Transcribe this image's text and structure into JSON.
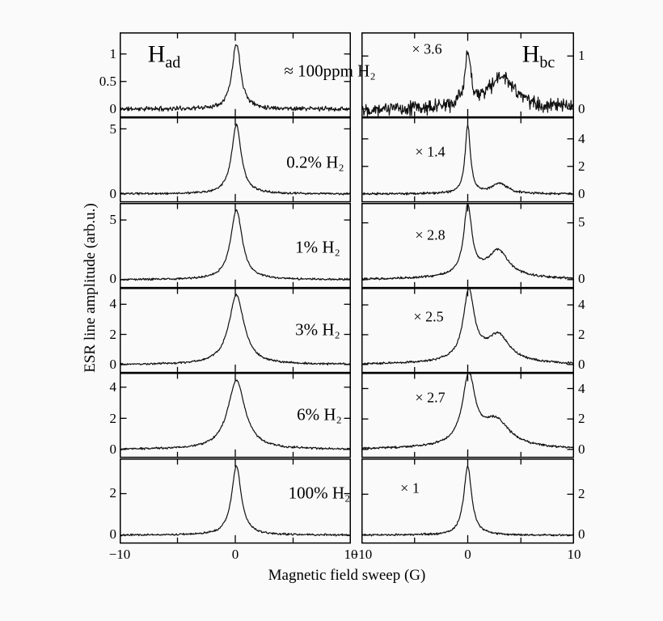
{
  "colors": {
    "axis": "#000000",
    "line": "#111111",
    "background": "#fafafa"
  },
  "chart_data": {
    "type": "line",
    "title": "",
    "xlabel": "Magnetic field sweep (G)",
    "ylabel": "ESR line amplitude (arb.u.)",
    "x_range": [
      -10,
      10
    ],
    "x_tick_labels": [
      "−10",
      "0",
      "10"
    ],
    "grid": false,
    "legend": null,
    "columns": {
      "left": {
        "title_base": "H",
        "title_sub": "ad"
      },
      "right": {
        "title_base": "H",
        "title_sub": "bc"
      }
    },
    "rows": [
      {
        "label": "≈ 100ppm H₂",
        "multiplier": "× 3.6",
        "left": {
          "ymax": 1.3,
          "yticks": [
            [
              0,
              "0"
            ],
            [
              0.5,
              "0.5"
            ],
            [
              1,
              "1"
            ]
          ],
          "peaks": [
            [
              0.1,
              0.45,
              1.2
            ]
          ],
          "noise": 0.05,
          "seed": 11
        },
        "right": {
          "ymax": 1.35,
          "yticks": [
            [
              0,
              "0"
            ],
            [
              1,
              "1"
            ]
          ],
          "peaks": [
            [
              0,
              0.35,
              0.95
            ],
            [
              3.2,
              1.5,
              0.6
            ]
          ],
          "noise": 0.17,
          "seed": 22
        }
      },
      {
        "label": "0.2% H₂",
        "multiplier": "× 1.4",
        "left": {
          "ymax": 5.5,
          "yticks": [
            [
              0,
              "0"
            ],
            [
              5,
              "5"
            ]
          ],
          "peaks": [
            [
              0.1,
              0.5,
              5.3
            ]
          ],
          "noise": 0.1,
          "seed": 33
        },
        "right": {
          "ymax": 5.2,
          "yticks": [
            [
              0,
              "0"
            ],
            [
              2,
              "2"
            ],
            [
              4,
              "4"
            ]
          ],
          "peaks": [
            [
              0,
              0.3,
              4.95
            ],
            [
              3.0,
              0.9,
              0.75
            ]
          ],
          "noise": 0.1,
          "seed": 44
        }
      },
      {
        "label": "1% H₂",
        "multiplier": "× 2.8",
        "left": {
          "ymax": 6.0,
          "yticks": [
            [
              0,
              "0"
            ],
            [
              5,
              "5"
            ]
          ],
          "peaks": [
            [
              0.1,
              0.6,
              5.85
            ]
          ],
          "noise": 0.1,
          "seed": 55
        },
        "right": {
          "ymax": 6.3,
          "yticks": [
            [
              0,
              "0"
            ],
            [
              5,
              "5"
            ]
          ],
          "peaks": [
            [
              0,
              0.45,
              6.0
            ],
            [
              2.9,
              1.1,
              2.1
            ],
            [
              1.5,
              3.5,
              0.5
            ]
          ],
          "noise": 0.12,
          "seed": 66
        }
      },
      {
        "label": "3% H₂",
        "multiplier": "× 2.5",
        "left": {
          "ymax": 4.75,
          "yticks": [
            [
              0,
              "0"
            ],
            [
              2,
              "2"
            ],
            [
              4,
              "4"
            ]
          ],
          "peaks": [
            [
              0.1,
              0.8,
              4.6
            ]
          ],
          "noise": 0.08,
          "seed": 77
        },
        "right": {
          "ymax": 4.8,
          "yticks": [
            [
              0,
              "0"
            ],
            [
              2,
              "2"
            ],
            [
              4,
              "4"
            ]
          ],
          "peaks": [
            [
              0.1,
              0.6,
              4.5
            ],
            [
              2.9,
              1.2,
              1.6
            ],
            [
              1.2,
              3.0,
              0.45
            ]
          ],
          "noise": 0.09,
          "seed": 88
        }
      },
      {
        "label": "6% H₂",
        "multiplier": "× 2.7",
        "left": {
          "ymax": 4.6,
          "yticks": [
            [
              0,
              "0"
            ],
            [
              2,
              "2"
            ],
            [
              4,
              "4"
            ]
          ],
          "peaks": [
            [
              0.1,
              0.9,
              4.45
            ]
          ],
          "noise": 0.08,
          "seed": 99
        },
        "right": {
          "ymax": 4.7,
          "yticks": [
            [
              0,
              "0"
            ],
            [
              2,
              "2"
            ],
            [
              4,
              "4"
            ]
          ],
          "peaks": [
            [
              0.1,
              0.7,
              4.35
            ],
            [
              2.7,
              1.4,
              1.4
            ],
            [
              1.5,
              3.2,
              0.5
            ]
          ],
          "noise": 0.09,
          "seed": 110
        }
      },
      {
        "label": "100% H₂",
        "multiplier": "× 1",
        "left": {
          "ymax": 3.45,
          "yticks": [
            [
              0,
              "0"
            ],
            [
              2,
              "2"
            ]
          ],
          "peaks": [
            [
              0.1,
              0.5,
              3.35
            ]
          ],
          "noise": 0.06,
          "seed": 121
        },
        "right": {
          "ymax": 3.5,
          "yticks": [
            [
              0,
              "0"
            ],
            [
              2,
              "2"
            ]
          ],
          "peaks": [
            [
              0,
              0.45,
              3.35
            ]
          ],
          "noise": 0.06,
          "seed": 132
        }
      }
    ]
  }
}
